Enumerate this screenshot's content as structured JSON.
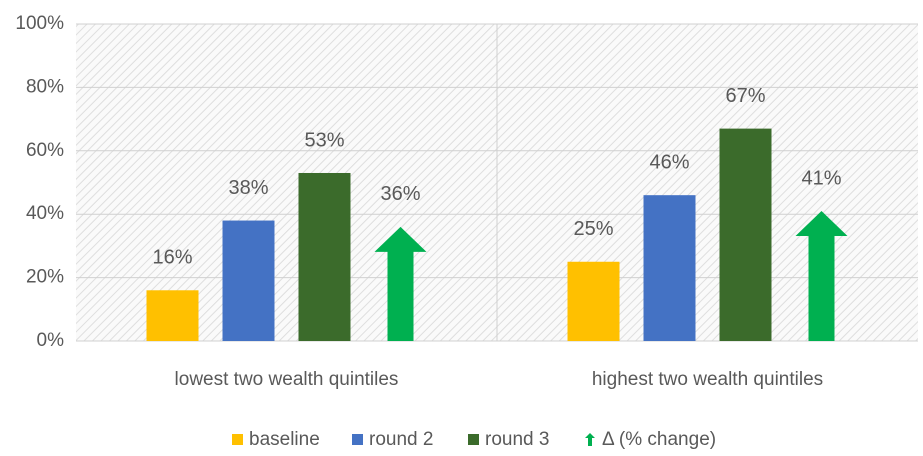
{
  "chart_data": {
    "type": "bar",
    "categories": [
      "lowest two wealth quintiles",
      "highest two wealth quintiles"
    ],
    "series": [
      {
        "name": "baseline",
        "color": "#FFC000",
        "values": [
          16,
          25
        ],
        "value_labels": [
          "16%",
          "25%"
        ]
      },
      {
        "name": "round 2",
        "color": "#4472C4",
        "values": [
          38,
          46
        ],
        "value_labels": [
          "38%",
          "46%"
        ]
      },
      {
        "name": "round 3",
        "color": "#3B6B2B",
        "values": [
          53,
          67
        ],
        "value_labels": [
          "53%",
          "67%"
        ]
      },
      {
        "name": "Δ (% change)",
        "color": "#00B050",
        "style": "arrow",
        "values": [
          36,
          41
        ],
        "value_labels": [
          "36%",
          "41%"
        ]
      }
    ],
    "ylim": [
      0,
      100
    ],
    "yticks": [
      {
        "value": 0,
        "label": "0%"
      },
      {
        "value": 20,
        "label": "20%"
      },
      {
        "value": 40,
        "label": "40%"
      },
      {
        "value": 60,
        "label": "60%"
      },
      {
        "value": 80,
        "label": "80%"
      },
      {
        "value": 100,
        "label": "100%"
      }
    ],
    "grid": true,
    "legend": "bottom"
  }
}
